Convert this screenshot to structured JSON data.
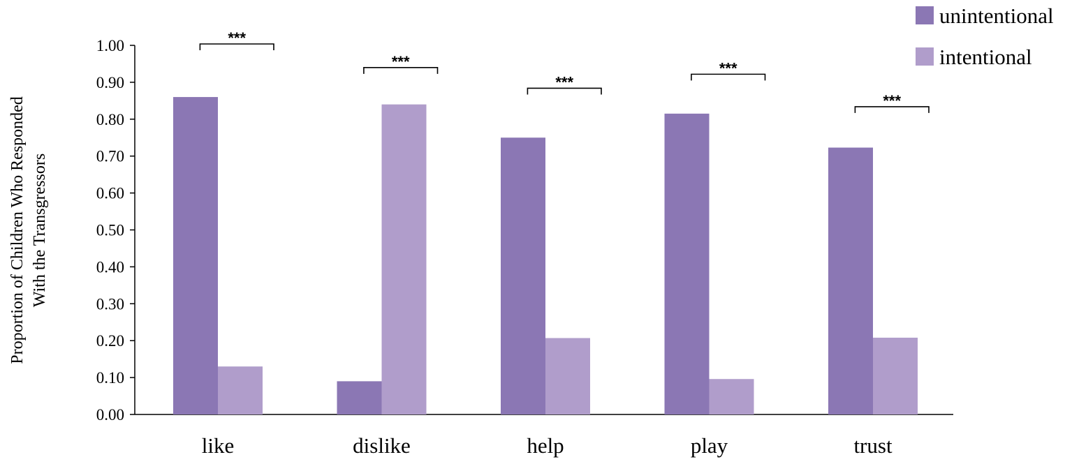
{
  "chart_data": {
    "type": "bar",
    "title": "",
    "xlabel": "",
    "ylabel_lines": [
      "Proportion of Children  Who Responded",
      "With the Transgressors"
    ],
    "categories": [
      "like",
      "dislike",
      "help",
      "play",
      "trust"
    ],
    "series": [
      {
        "name": "unintentional",
        "color": "#8b77b4",
        "values": [
          0.86,
          0.09,
          0.75,
          0.815,
          0.723
        ]
      },
      {
        "name": "intentional",
        "color": "#b09dcb",
        "values": [
          0.13,
          0.84,
          0.207,
          0.096,
          0.208
        ]
      }
    ],
    "ylim": [
      0,
      1
    ],
    "yticks": [
      "0.00",
      "0.10",
      "0.20",
      "0.30",
      "0.40",
      "0.50",
      "0.60",
      "0.70",
      "0.80",
      "0.90",
      "1.00"
    ],
    "significance": [
      {
        "label": "***",
        "bracket_level": 1.0
      },
      {
        "label": "***",
        "bracket_level": 0.936
      },
      {
        "label": "***",
        "bracket_level": 0.88
      },
      {
        "label": "***",
        "bracket_level": 0.918
      },
      {
        "label": "***",
        "bracket_level": 0.83
      }
    ],
    "legend_position": "top-right",
    "grid": false
  }
}
